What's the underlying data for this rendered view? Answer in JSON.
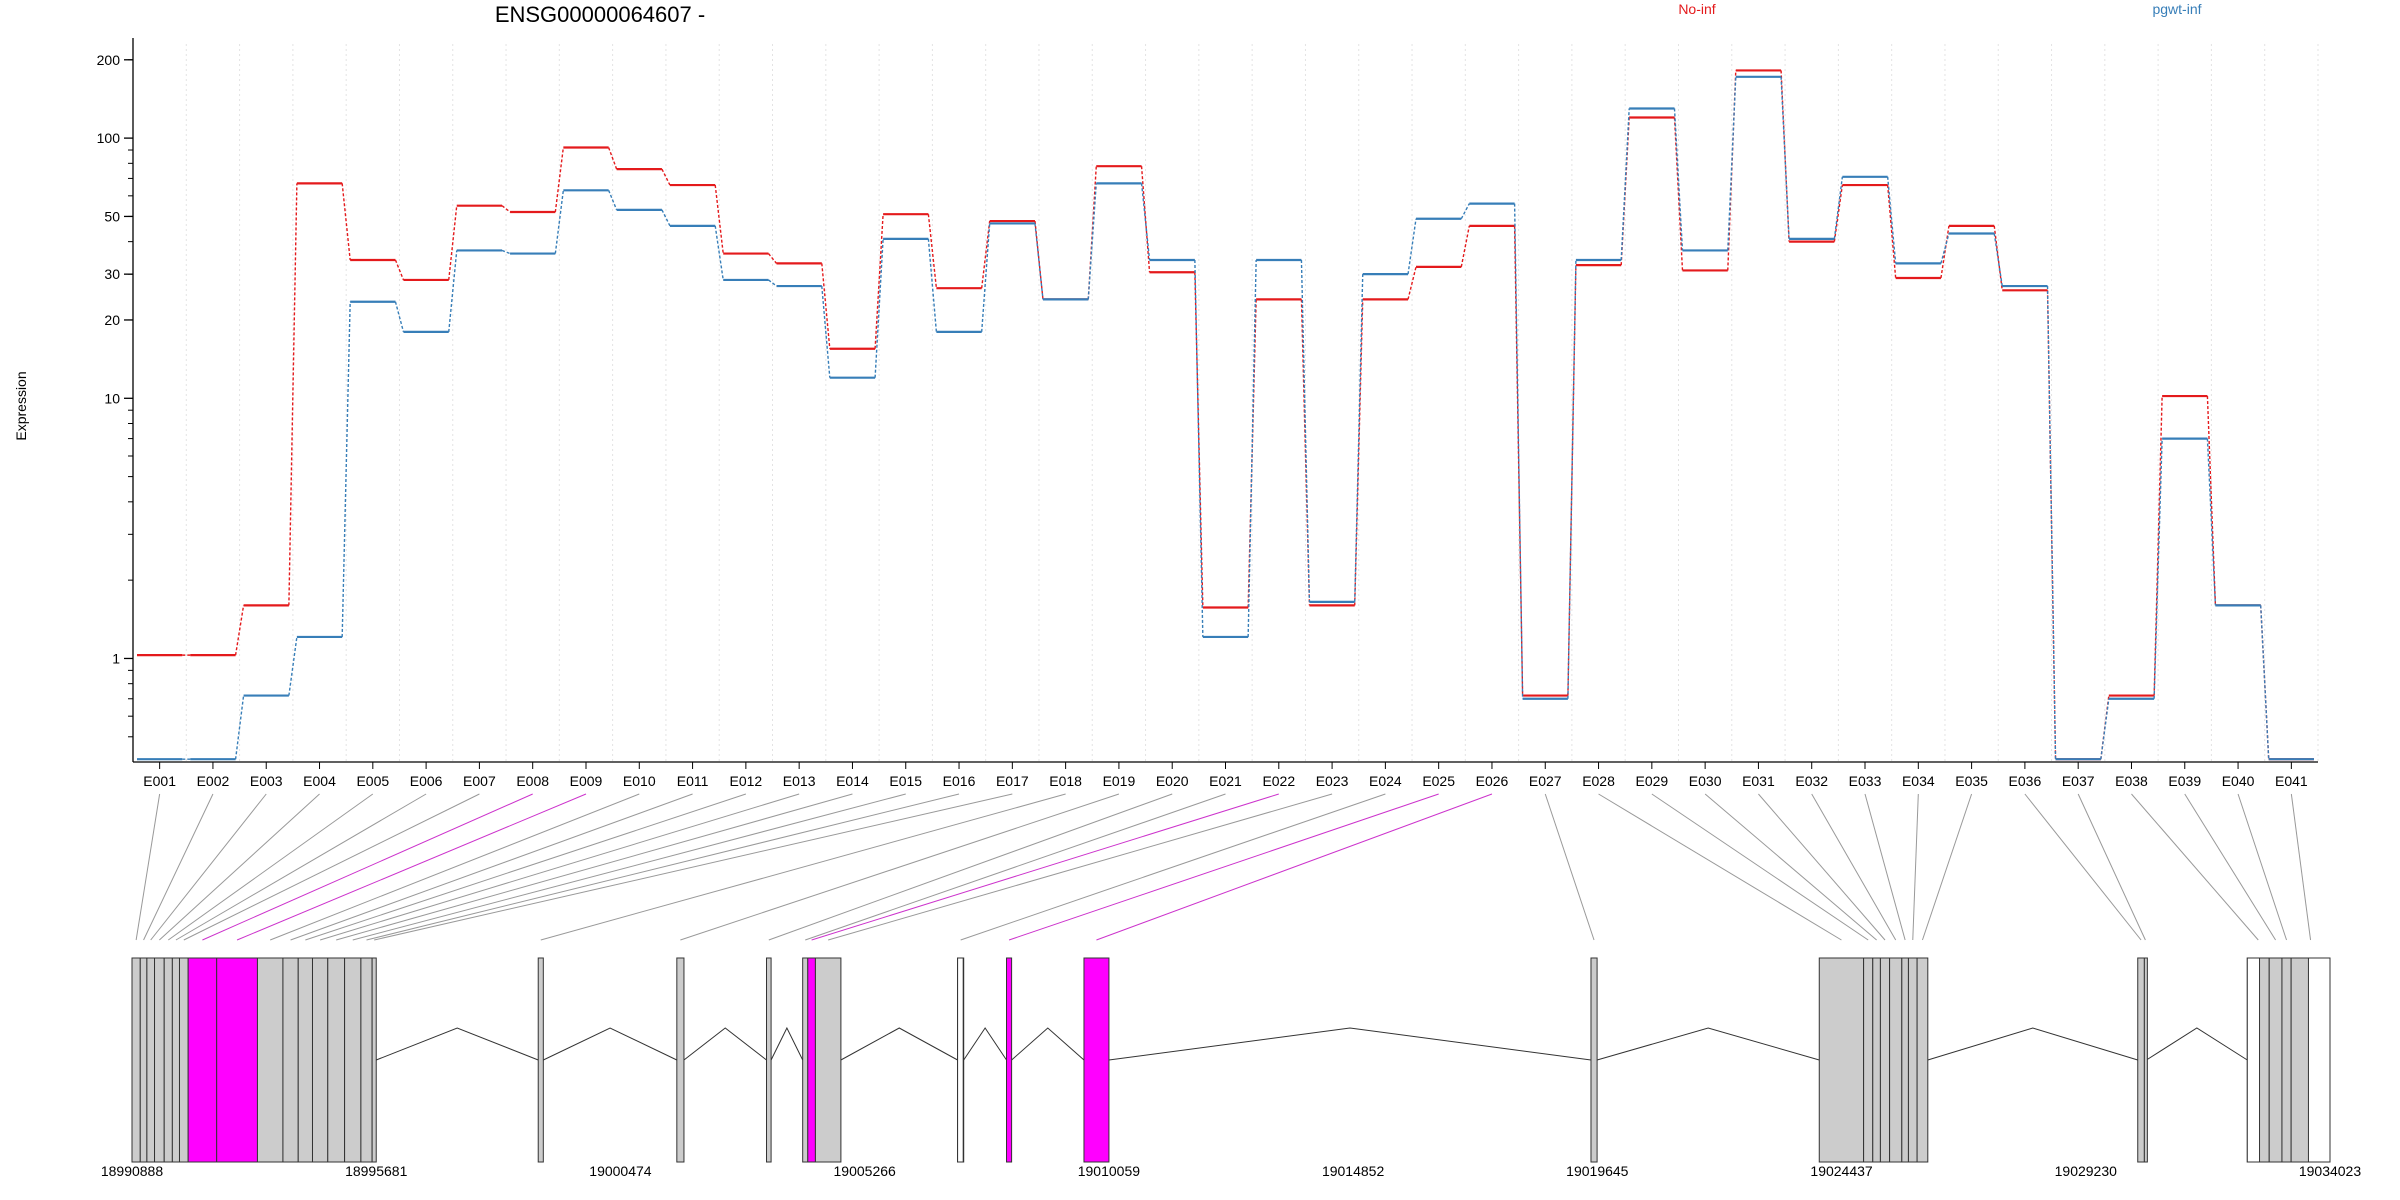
{
  "chart_data": {
    "type": "line",
    "title": "ENSG00000064607 -",
    "ylabel": "Expression",
    "yscale": "log",
    "ylim": [
      0.4,
      230
    ],
    "yticks": [
      1,
      10,
      20,
      30,
      50,
      100,
      200
    ],
    "ytick_labels": [
      "1",
      "10",
      "20",
      "30",
      "50",
      "100",
      "200"
    ],
    "categories": [
      "E001",
      "E002",
      "E003",
      "E004",
      "E005",
      "E006",
      "E007",
      "E008",
      "E009",
      "E010",
      "E011",
      "E012",
      "E013",
      "E014",
      "E015",
      "E016",
      "E017",
      "E018",
      "E019",
      "E020",
      "E021",
      "E022",
      "E023",
      "E024",
      "E025",
      "E026",
      "E027",
      "E028",
      "E029",
      "E030",
      "E031",
      "E032",
      "E033",
      "E034",
      "E035",
      "E036",
      "E037",
      "E038",
      "E039",
      "E040",
      "E041"
    ],
    "series": [
      {
        "name": "No-inf",
        "color": "#e41a1c",
        "values": [
          1.03,
          1.03,
          1.6,
          67,
          34,
          28.5,
          55,
          52,
          92,
          76,
          66,
          36,
          33,
          15.5,
          51,
          26.5,
          48,
          24,
          78,
          30.5,
          1.57,
          24,
          1.6,
          24,
          32,
          46,
          0.72,
          32.5,
          120,
          31,
          182,
          40,
          66,
          29,
          46,
          26,
          0.41,
          0.72,
          10.2,
          1.6,
          0.41
        ]
      },
      {
        "name": "pgwt-inf",
        "color": "#377eb8",
        "values": [
          0.41,
          0.41,
          0.72,
          1.21,
          23.5,
          18,
          37,
          36,
          63,
          53,
          46,
          28.5,
          27,
          12,
          41,
          18,
          47,
          24,
          67,
          34,
          1.21,
          34,
          1.65,
          30,
          49,
          56,
          0.7,
          34,
          130,
          37,
          172,
          41,
          71,
          33,
          43,
          27,
          0.41,
          0.7,
          7,
          1.6,
          0.41
        ]
      }
    ],
    "highlighted_exons": [
      "E008",
      "E009",
      "E022",
      "E025",
      "E026"
    ],
    "gene_model": {
      "coordinate_labels": [
        "18990888",
        "18995681",
        "19000474",
        "19005266",
        "19010059",
        "19014852",
        "19019645",
        "19024437",
        "19029230",
        "19034023"
      ],
      "exon_fill": "#cccccc",
      "highlight_fill": "#ff00ff"
    },
    "legend_placement": "top-right",
    "grid": "vertical-dotted"
  }
}
